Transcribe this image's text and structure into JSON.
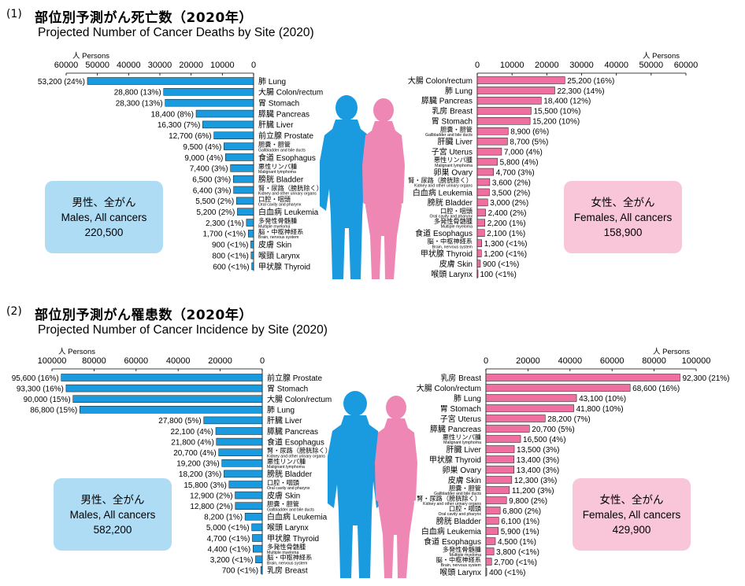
{
  "sections": [
    {
      "num": "(1)",
      "title_ja": "部位別予測がん死亡数（2020年）",
      "title_en": "Projected Number of Cancer Deaths by Site (2020)",
      "male_total": {
        "ja": "男性、全がん",
        "en": "Males, All cancers",
        "value": "220,500"
      },
      "female_total": {
        "ja": "女性、全がん",
        "en": "Females, All cancers",
        "value": "158,900"
      }
    },
    {
      "num": "(2)",
      "title_ja": "部位別予測がん罹患数（2020年）",
      "title_en": "Projected Number of Cancer Incidence by Site (2020)",
      "male_total": {
        "ja": "男性、全がん",
        "en": "Males, All cancers",
        "value": "582,200"
      },
      "female_total": {
        "ja": "女性、全がん",
        "en": "Females, All cancers",
        "value": "429,900"
      }
    }
  ],
  "chart_data": [
    {
      "type": "bar",
      "orientation": "horizontal",
      "panel": "deaths-male",
      "unit_label": "人 Persons",
      "xlim": [
        0,
        60000
      ],
      "ticks": [
        60000,
        50000,
        40000,
        30000,
        20000,
        10000,
        0
      ],
      "color": "#1a9be0",
      "direction": "left",
      "items": [
        {
          "site_ja": "肺",
          "site_en": "Lung",
          "value": 53200,
          "label": "53,200 (24%)"
        },
        {
          "site_ja": "大腸",
          "site_en": "Colon/rectum",
          "value": 28800,
          "label": "28,800 (13%)"
        },
        {
          "site_ja": "胃",
          "site_en": "Stomach",
          "value": 28300,
          "label": "28,300 (13%)"
        },
        {
          "site_ja": "膵臓",
          "site_en": "Pancreas",
          "value": 18400,
          "label": "18,400 (8%)"
        },
        {
          "site_ja": "肝臓",
          "site_en": "Liver",
          "value": 16300,
          "label": "16,300 (7%)"
        },
        {
          "site_ja": "前立腺",
          "site_en": "Prostate",
          "value": 12700,
          "label": "12,700 (6%)"
        },
        {
          "site_ja": "胆嚢・胆管",
          "site_en": "Gallbladder and bile ducts",
          "value": 9500,
          "label": "9,500 (4%)",
          "two_line": true
        },
        {
          "site_ja": "食道",
          "site_en": "Esophagus",
          "value": 9000,
          "label": "9,000 (4%)"
        },
        {
          "site_ja": "悪性リンパ腫",
          "site_en": "Malignant lymphoma",
          "value": 7400,
          "label": "7,400 (3%)",
          "two_line": true
        },
        {
          "site_ja": "膀胱",
          "site_en": "Bladder",
          "value": 6500,
          "label": "6,500 (3%)"
        },
        {
          "site_ja": "腎・尿路（膀胱除く）",
          "site_en": "Kidney and other urinary organs",
          "value": 6400,
          "label": "6,400 (3%)",
          "two_line": true
        },
        {
          "site_ja": "口腔・咽頭",
          "site_en": "Oral cavity and pharynx",
          "value": 5500,
          "label": "5,500 (2%)",
          "two_line": true
        },
        {
          "site_ja": "白血病",
          "site_en": "Leukemia",
          "value": 5200,
          "label": "5,200 (2%)"
        },
        {
          "site_ja": "多発性骨髄腫",
          "site_en": "Multiple myeloma",
          "value": 2300,
          "label": "2,300 (1%)",
          "two_line": true
        },
        {
          "site_ja": "脳・中枢神経系",
          "site_en": "Brain, nervous system",
          "value": 1700,
          "label": "1,700 (<1%)",
          "two_line": true
        },
        {
          "site_ja": "皮膚",
          "site_en": "Skin",
          "value": 900,
          "label": "900 (<1%)"
        },
        {
          "site_ja": "喉頭",
          "site_en": "Larynx",
          "value": 800,
          "label": "800 (<1%)"
        },
        {
          "site_ja": "甲状腺",
          "site_en": "Thyroid",
          "value": 600,
          "label": "600 (<1%)"
        }
      ]
    },
    {
      "type": "bar",
      "orientation": "horizontal",
      "panel": "deaths-female",
      "unit_label": "人 Persons",
      "xlim": [
        0,
        60000
      ],
      "ticks": [
        0,
        10000,
        20000,
        30000,
        40000,
        50000,
        60000
      ],
      "color": "#ef6fa0",
      "direction": "right",
      "items": [
        {
          "site_ja": "大腸",
          "site_en": "Colon/rectum",
          "value": 25200,
          "label": "25,200 (16%)"
        },
        {
          "site_ja": "肺",
          "site_en": "Lung",
          "value": 22300,
          "label": "22,300 (14%)"
        },
        {
          "site_ja": "膵臓",
          "site_en": "Pancreas",
          "value": 18400,
          "label": "18,400 (12%)"
        },
        {
          "site_ja": "乳房",
          "site_en": "Breast",
          "value": 15500,
          "label": "15,500 (10%)"
        },
        {
          "site_ja": "胃",
          "site_en": "Stomach",
          "value": 15200,
          "label": "15,200 (10%)"
        },
        {
          "site_ja": "胆嚢・胆管",
          "site_en": "Gallbladder and bile ducts",
          "value": 8900,
          "label": "8,900 (6%)",
          "two_line": true
        },
        {
          "site_ja": "肝臓",
          "site_en": "Liver",
          "value": 8700,
          "label": "8,700 (5%)"
        },
        {
          "site_ja": "子宮",
          "site_en": "Uterus",
          "value": 7000,
          "label": "7,000 (4%)"
        },
        {
          "site_ja": "悪性リンパ腫",
          "site_en": "Malignant lymphoma",
          "value": 5800,
          "label": "5,800 (4%)",
          "two_line": true
        },
        {
          "site_ja": "卵巣",
          "site_en": "Ovary",
          "value": 4700,
          "label": "4,700 (3%)"
        },
        {
          "site_ja": "腎・尿路（膀胱除く）",
          "site_en": "Kidney and other urinary organs",
          "value": 3600,
          "label": "3,600 (2%)",
          "two_line": true
        },
        {
          "site_ja": "白血病",
          "site_en": "Leukemia",
          "value": 3500,
          "label": "3,500 (2%)"
        },
        {
          "site_ja": "膀胱",
          "site_en": "Bladder",
          "value": 3000,
          "label": "3,000 (2%)"
        },
        {
          "site_ja": "口腔・咽頭",
          "site_en": "Oral cavity and pharynx",
          "value": 2400,
          "label": "2,400 (2%)",
          "two_line": true
        },
        {
          "site_ja": "多発性骨髄腫",
          "site_en": "Multiple myeloma",
          "value": 2200,
          "label": "2,200 (1%)",
          "two_line": true
        },
        {
          "site_ja": "食道",
          "site_en": "Esophagus",
          "value": 2100,
          "label": "2,100 (1%)"
        },
        {
          "site_ja": "脳・中枢神経系",
          "site_en": "Brain, nervous system",
          "value": 1300,
          "label": "1,300 (<1%)",
          "two_line": true
        },
        {
          "site_ja": "甲状腺",
          "site_en": "Thyroid",
          "value": 1200,
          "label": "1,200 (<1%)"
        },
        {
          "site_ja": "皮膚",
          "site_en": "Skin",
          "value": 900,
          "label": "900 (<1%)"
        },
        {
          "site_ja": "喉頭",
          "site_en": "Larynx",
          "value": 100,
          "label": "100 (<1%)"
        }
      ]
    },
    {
      "type": "bar",
      "orientation": "horizontal",
      "panel": "incidence-male",
      "unit_label": "人 Persons",
      "xlim": [
        0,
        100000
      ],
      "ticks": [
        100000,
        80000,
        60000,
        40000,
        20000,
        0
      ],
      "color": "#1a9be0",
      "direction": "left",
      "items": [
        {
          "site_ja": "前立腺",
          "site_en": "Prostate",
          "value": 95600,
          "label": "95,600 (16%)"
        },
        {
          "site_ja": "胃",
          "site_en": "Stomach",
          "value": 93300,
          "label": "93,300 (16%)"
        },
        {
          "site_ja": "大腸",
          "site_en": "Colon/rectum",
          "value": 90000,
          "label": "90,000 (15%)"
        },
        {
          "site_ja": "肺",
          "site_en": "Lung",
          "value": 86800,
          "label": "86,800 (15%)"
        },
        {
          "site_ja": "肝臓",
          "site_en": "Liver",
          "value": 27800,
          "label": "27,800 (5%)"
        },
        {
          "site_ja": "膵臓",
          "site_en": "Pancreas",
          "value": 22100,
          "label": "22,100 (4%)"
        },
        {
          "site_ja": "食道",
          "site_en": "Esophagus",
          "value": 21800,
          "label": "21,800 (4%)"
        },
        {
          "site_ja": "腎・尿路（膀胱除く）",
          "site_en": "Kidney and other urinary organs",
          "value": 20700,
          "label": "20,700 (4%)",
          "two_line": true
        },
        {
          "site_ja": "悪性リンパ腫",
          "site_en": "Malignant lymphoma",
          "value": 19200,
          "label": "19,200 (3%)",
          "two_line": true
        },
        {
          "site_ja": "膀胱",
          "site_en": "Bladder",
          "value": 18200,
          "label": "18,200 (3%)"
        },
        {
          "site_ja": "口腔・咽頭",
          "site_en": "Oral cavity and pharynx",
          "value": 15800,
          "label": "15,800 (3%)",
          "two_line": true
        },
        {
          "site_ja": "皮膚",
          "site_en": "Skin",
          "value": 12900,
          "label": "12,900 (2%)"
        },
        {
          "site_ja": "胆嚢・胆管",
          "site_en": "Gallbladder and bile ducts",
          "value": 12800,
          "label": "12,800 (2%)",
          "two_line": true
        },
        {
          "site_ja": "白血病",
          "site_en": "Leukemia",
          "value": 8200,
          "label": "8,200 (1%)"
        },
        {
          "site_ja": "喉頭",
          "site_en": "Larynx",
          "value": 5000,
          "label": "5,000 (<1%)"
        },
        {
          "site_ja": "甲状腺",
          "site_en": "Thyroid",
          "value": 4700,
          "label": "4,700 (<1%)"
        },
        {
          "site_ja": "多発性骨髄腫",
          "site_en": "Multiple myeloma",
          "value": 4400,
          "label": "4,400 (<1%)",
          "two_line": true
        },
        {
          "site_ja": "脳・中枢神経系",
          "site_en": "Brain, nervous system",
          "value": 3200,
          "label": "3,200 (<1%)",
          "two_line": true
        },
        {
          "site_ja": "乳房",
          "site_en": "Breast",
          "value": 700,
          "label": "700 (<1%)"
        }
      ]
    },
    {
      "type": "bar",
      "orientation": "horizontal",
      "panel": "incidence-female",
      "unit_label": "人 Persons",
      "xlim": [
        0,
        100000
      ],
      "ticks": [
        0,
        20000,
        40000,
        60000,
        80000,
        100000
      ],
      "color": "#ef6fa0",
      "direction": "right",
      "items": [
        {
          "site_ja": "乳房",
          "site_en": "Breast",
          "value": 92300,
          "label": "92,300 (21%)"
        },
        {
          "site_ja": "大腸",
          "site_en": "Colon/rectum",
          "value": 68600,
          "label": "68,600 (16%)"
        },
        {
          "site_ja": "肺",
          "site_en": "Lung",
          "value": 43100,
          "label": "43,100 (10%)"
        },
        {
          "site_ja": "胃",
          "site_en": "Stomach",
          "value": 41800,
          "label": "41,800 (10%)"
        },
        {
          "site_ja": "子宮",
          "site_en": "Uterus",
          "value": 28200,
          "label": "28,200 (7%)"
        },
        {
          "site_ja": "膵臓",
          "site_en": "Pancreas",
          "value": 20700,
          "label": "20,700 (5%)"
        },
        {
          "site_ja": "悪性リンパ腫",
          "site_en": "Malignant lymphoma",
          "value": 16500,
          "label": "16,500 (4%)",
          "two_line": true
        },
        {
          "site_ja": "肝臓",
          "site_en": "Liver",
          "value": 13500,
          "label": "13,500 (3%)"
        },
        {
          "site_ja": "甲状腺",
          "site_en": "Thyroid",
          "value": 13400,
          "label": "13,400 (3%)"
        },
        {
          "site_ja": "卵巣",
          "site_en": "Ovary",
          "value": 13400,
          "label": "13,400 (3%)"
        },
        {
          "site_ja": "皮膚",
          "site_en": "Skin",
          "value": 12300,
          "label": "12,300 (3%)"
        },
        {
          "site_ja": "胆嚢・胆管",
          "site_en": "Gallbladder and bile ducts",
          "value": 11200,
          "label": "11,200 (3%)",
          "two_line": true
        },
        {
          "site_ja": "腎・尿路（膀胱除く）",
          "site_en": "Kidney and other urinary organs",
          "value": 9800,
          "label": "9,800 (2%)",
          "two_line": true
        },
        {
          "site_ja": "口腔・咽頭",
          "site_en": "Oral cavity and pharynx",
          "value": 6800,
          "label": "6,800 (2%)",
          "two_line": true
        },
        {
          "site_ja": "膀胱",
          "site_en": "Bladder",
          "value": 6100,
          "label": "6,100 (1%)"
        },
        {
          "site_ja": "白血病",
          "site_en": "Leukemia",
          "value": 5900,
          "label": "5,900 (1%)"
        },
        {
          "site_ja": "食道",
          "site_en": "Esophagus",
          "value": 4500,
          "label": "4,500 (1%)"
        },
        {
          "site_ja": "多発性骨髄腫",
          "site_en": "Multiple myeloma",
          "value": 3800,
          "label": "3,800 (<1%)",
          "two_line": true
        },
        {
          "site_ja": "脳・中枢神経系",
          "site_en": "Brain, nervous system",
          "value": 2700,
          "label": "2,700 (<1%)",
          "two_line": true
        },
        {
          "site_ja": "喉頭",
          "site_en": "Larynx",
          "value": 400,
          "label": "400 (<1%)"
        }
      ]
    }
  ],
  "colors": {
    "male": "#1a9be0",
    "female": "#ef6fa0",
    "male_box": "#aedcf5",
    "female_box": "#f8c6d8"
  }
}
